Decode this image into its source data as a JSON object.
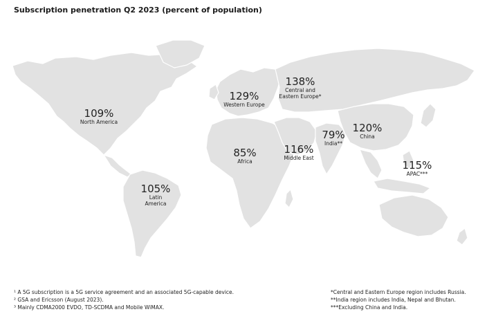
{
  "title": "Subscription penetration Q2 2023 (percent of population)",
  "colors": {
    "land": "#e2e2e2",
    "text": "#222222",
    "background": "#ffffff"
  },
  "regions": {
    "north_america": {
      "value": "109%",
      "name_lines": [
        "North America"
      ]
    },
    "latin_america": {
      "value": "105%",
      "name_lines": [
        "Latin",
        "America"
      ]
    },
    "western_europe": {
      "value": "129%",
      "name_lines": [
        "Western Europe"
      ]
    },
    "central_eastern_europe": {
      "value": "138%",
      "name_lines": [
        "Central and",
        "Eastern Europe*"
      ]
    },
    "africa": {
      "value": "85%",
      "name_lines": [
        "Africa"
      ]
    },
    "middle_east": {
      "value": "116%",
      "name_lines": [
        "Middle East"
      ]
    },
    "india": {
      "value": "79%",
      "name_lines": [
        "India**"
      ]
    },
    "china": {
      "value": "120%",
      "name_lines": [
        "China"
      ]
    },
    "apac": {
      "value": "115%",
      "name_lines": [
        "APAC***"
      ]
    }
  },
  "footnotes_left": [
    "¹ A 5G subscription is a 5G service agreement and an associated 5G-capable device.",
    "² GSA and Ericsson (August 2023).",
    "³ Mainly CDMA2000 EVDO, TD-SCDMA and Mobile WiMAX."
  ],
  "footnotes_right": [
    "*Central and Eastern Europe region includes Russia.",
    "**India region includes India, Nepal and Bhutan.",
    "***Excluding China and India."
  ]
}
